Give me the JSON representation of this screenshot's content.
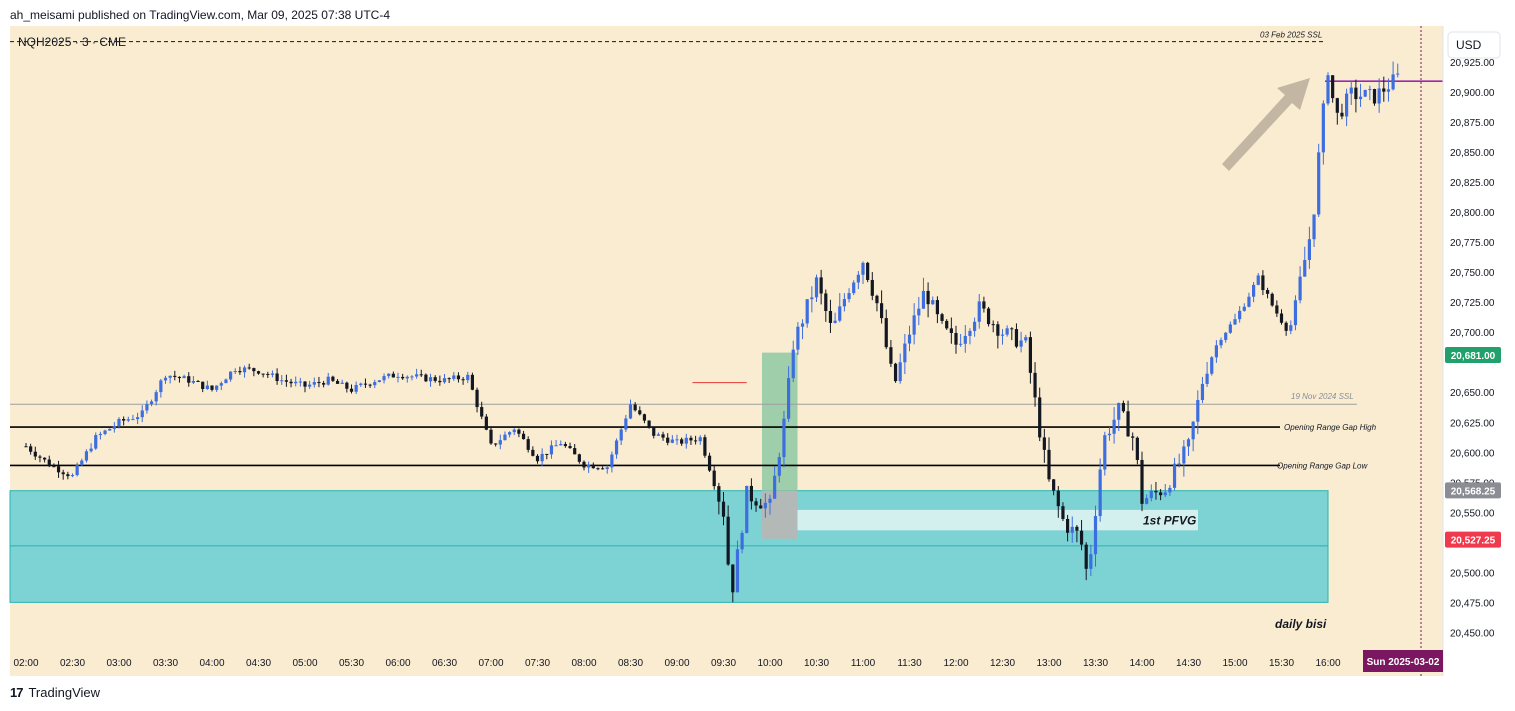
{
  "header": {
    "published_line": "ah_meisami published on TradingView.com, Mar 09, 2025 07:38 UTC-4"
  },
  "footer": {
    "brand": "TradingView",
    "logo_glyph": "17"
  },
  "colors": {
    "bg": "#faecd1",
    "bull": "#3d6ee0",
    "bear": "#131722",
    "zone_fill": "#7dd3d3",
    "zone_stroke": "#26b3b3",
    "pfvg_fill": "#d9f1ef",
    "green_box": "#8ec9a3",
    "grey_box": "#b9b6b2",
    "tag_green": "#22a06b",
    "tag_red": "#ef3a4e",
    "tag_grey": "#8a8d94",
    "purple": "#9c27b0",
    "date_tag": "#7b1760"
  },
  "chart_data": {
    "type": "candlestick",
    "symbol_label": "NQH2025 · 3 · CME",
    "currency_button": "USD",
    "ylim": [
      20437,
      20955
    ],
    "x_ticks": [
      "02:00",
      "02:30",
      "03:00",
      "03:30",
      "04:00",
      "04:30",
      "05:00",
      "05:30",
      "06:00",
      "06:30",
      "07:00",
      "07:30",
      "08:00",
      "08:30",
      "09:00",
      "09:30",
      "10:00",
      "10:30",
      "11:00",
      "11:30",
      "12:00",
      "12:30",
      "13:00",
      "13:30",
      "14:00",
      "14:30",
      "15:00",
      "15:30",
      "16:00"
    ],
    "y_ticks": [
      20925,
      20900,
      20875,
      20850,
      20825,
      20800,
      20775,
      20750,
      20725,
      20700,
      20650,
      20625,
      20600,
      20575,
      20550,
      20500,
      20475,
      20450
    ],
    "y_tick_labels": [
      "20,925.00",
      "20,900.00",
      "20,875.00",
      "20,850.00",
      "20,825.00",
      "20,800.00",
      "20,775.00",
      "20,750.00",
      "20,725.00",
      "20,700.00",
      "20,650.00",
      "20,625.00",
      "20,600.00",
      "20,575.00",
      "20,550.00",
      "20,500.00",
      "20,475.00",
      "20,450.00"
    ],
    "price_tags": [
      {
        "value": 20681.0,
        "label": "20,681.00",
        "color": "green"
      },
      {
        "value": 20568.25,
        "label": "20,568.25",
        "color": "grey"
      },
      {
        "value": 20527.25,
        "label": "20,527.25",
        "color": "red"
      }
    ],
    "date_tag": "Sun 2025-03-02",
    "anchors": [
      {
        "t": "02:00",
        "p": 20605
      },
      {
        "t": "02:15",
        "p": 20590
      },
      {
        "t": "02:30",
        "p": 20580
      },
      {
        "t": "02:45",
        "p": 20612
      },
      {
        "t": "03:00",
        "p": 20625
      },
      {
        "t": "03:15",
        "p": 20632
      },
      {
        "t": "03:30",
        "p": 20665
      },
      {
        "t": "03:45",
        "p": 20660
      },
      {
        "t": "04:00",
        "p": 20652
      },
      {
        "t": "04:15",
        "p": 20670
      },
      {
        "t": "04:30",
        "p": 20668
      },
      {
        "t": "04:45",
        "p": 20660
      },
      {
        "t": "05:00",
        "p": 20655
      },
      {
        "t": "05:15",
        "p": 20660
      },
      {
        "t": "05:30",
        "p": 20652
      },
      {
        "t": "05:45",
        "p": 20660
      },
      {
        "t": "06:00",
        "p": 20665
      },
      {
        "t": "06:15",
        "p": 20662
      },
      {
        "t": "06:30",
        "p": 20660
      },
      {
        "t": "06:45",
        "p": 20663
      },
      {
        "t": "07:00",
        "p": 20605
      },
      {
        "t": "07:15",
        "p": 20620
      },
      {
        "t": "07:30",
        "p": 20595
      },
      {
        "t": "07:45",
        "p": 20608
      },
      {
        "t": "08:00",
        "p": 20590
      },
      {
        "t": "08:15",
        "p": 20588
      },
      {
        "t": "08:30",
        "p": 20640
      },
      {
        "t": "08:45",
        "p": 20615
      },
      {
        "t": "09:00",
        "p": 20608
      },
      {
        "t": "09:15",
        "p": 20612
      },
      {
        "t": "09:30",
        "p": 20550
      },
      {
        "t": "09:35",
        "p": 20480
      },
      {
        "t": "09:45",
        "p": 20565
      },
      {
        "t": "10:00",
        "p": 20555
      },
      {
        "t": "10:10",
        "p": 20632
      },
      {
        "t": "10:15",
        "p": 20690
      },
      {
        "t": "10:30",
        "p": 20742
      },
      {
        "t": "10:40",
        "p": 20700
      },
      {
        "t": "10:50",
        "p": 20735
      },
      {
        "t": "11:00",
        "p": 20760
      },
      {
        "t": "11:10",
        "p": 20720
      },
      {
        "t": "11:20",
        "p": 20655
      },
      {
        "t": "11:30",
        "p": 20700
      },
      {
        "t": "11:40",
        "p": 20735
      },
      {
        "t": "11:50",
        "p": 20705
      },
      {
        "t": "12:00",
        "p": 20690
      },
      {
        "t": "12:15",
        "p": 20720
      },
      {
        "t": "12:30",
        "p": 20700
      },
      {
        "t": "12:45",
        "p": 20690
      },
      {
        "t": "12:55",
        "p": 20610
      },
      {
        "t": "13:00",
        "p": 20575
      },
      {
        "t": "13:10",
        "p": 20540
      },
      {
        "t": "13:20",
        "p": 20530
      },
      {
        "t": "13:25",
        "p": 20495
      },
      {
        "t": "13:35",
        "p": 20610
      },
      {
        "t": "13:45",
        "p": 20635
      },
      {
        "t": "13:55",
        "p": 20610
      },
      {
        "t": "14:00",
        "p": 20560
      },
      {
        "t": "14:15",
        "p": 20570
      },
      {
        "t": "14:30",
        "p": 20605
      },
      {
        "t": "14:40",
        "p": 20665
      },
      {
        "t": "14:50",
        "p": 20695
      },
      {
        "t": "15:00",
        "p": 20710
      },
      {
        "t": "15:15",
        "p": 20745
      },
      {
        "t": "15:25",
        "p": 20720
      },
      {
        "t": "15:35",
        "p": 20700
      },
      {
        "t": "15:45",
        "p": 20760
      },
      {
        "t": "15:50",
        "p": 20790
      },
      {
        "t": "15:55",
        "p": 20860
      },
      {
        "t": "16:00",
        "p": 20920
      },
      {
        "t": "16:05",
        "p": 20878
      },
      {
        "t": "16:15",
        "p": 20898
      },
      {
        "t": "16:30",
        "p": 20896
      },
      {
        "t": "16:45",
        "p": 20912
      }
    ],
    "levels": [
      {
        "name": "03 Feb 2025 SSL",
        "value": 20942,
        "style": "dashed",
        "color": "#131722"
      },
      {
        "name": "19 Nov 2024 SSL",
        "value": 20640,
        "style": "solid",
        "color": "#9e9e9e"
      },
      {
        "name": "Opening Range Gap High",
        "value": 20621,
        "style": "solid",
        "color": "#000000"
      },
      {
        "name": "Opening Range Gap Low",
        "value": 20589,
        "style": "solid",
        "color": "#000000"
      },
      {
        "name": "purple_line",
        "value": 20909,
        "style": "solid",
        "color": "#9c27b0"
      },
      {
        "name": "red_short",
        "value": 20658,
        "style": "solid",
        "color": "#e53935"
      }
    ],
    "annotations": {
      "ssl_feb": "03 Feb 2025 SSL",
      "ssl_nov": "19 Nov 2024 SSL",
      "orgh": "Opening Range Gap High",
      "orgl": "Opening Range Gap Low",
      "pfvg": "1st PFVG",
      "daily_bisi": "daily bisi"
    },
    "zones": {
      "daily_bisi": {
        "top": 20568,
        "bottom": 20475,
        "mid": 20522
      },
      "pfvg": {
        "top": 20552,
        "bottom": 20535
      },
      "green_box": {
        "top": 20683,
        "bottom": 20568
      },
      "grey_box": {
        "top": 20568,
        "bottom": 20528
      }
    }
  }
}
